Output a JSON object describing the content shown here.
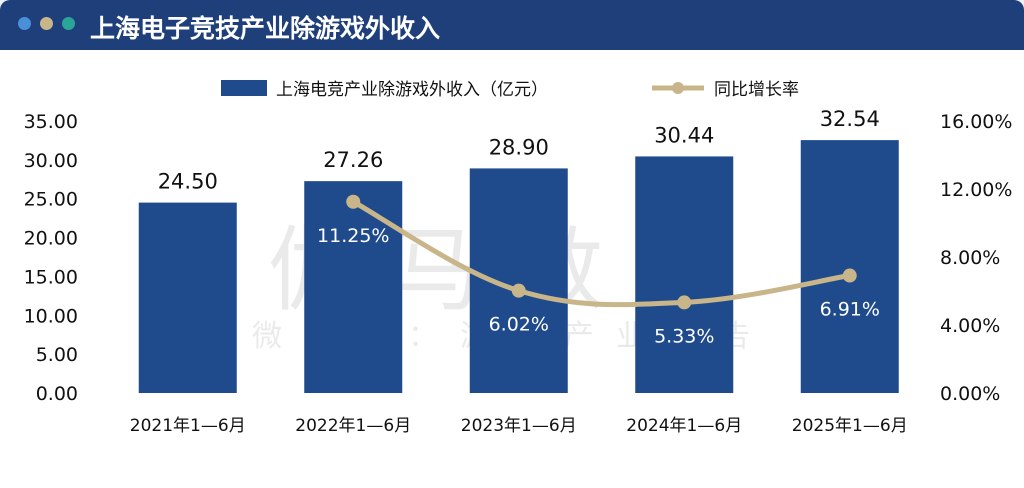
{
  "header": {
    "title": "上海电子竞技产业除游戏外收入",
    "dot_colors": [
      "#4a90d9",
      "#c8b58a",
      "#2aa59a"
    ]
  },
  "watermark": {
    "main": "伽马数据",
    "sub": "微信号：游戏产业报告"
  },
  "chart_data": {
    "type": "bar",
    "categories": [
      "2021年1—6月",
      "2022年1—6月",
      "2023年1—6月",
      "2024年1—6月",
      "2025年1—6月"
    ],
    "series": [
      {
        "name": "上海电竞产业除游戏外收入（亿元）",
        "type": "bar",
        "axis": "left",
        "color": "#1f4b8c",
        "values": [
          24.5,
          27.26,
          28.9,
          30.44,
          32.54
        ],
        "labels": [
          "24.50",
          "27.26",
          "28.90",
          "30.44",
          "32.54"
        ]
      },
      {
        "name": "同比增长率",
        "type": "line",
        "axis": "right",
        "color": "#c8b58a",
        "values": [
          null,
          11.25,
          6.02,
          5.33,
          6.91
        ],
        "labels": [
          "",
          "11.25%",
          "6.02%",
          "5.33%",
          "6.91%"
        ]
      }
    ],
    "y_left": {
      "ylim": [
        0,
        35
      ],
      "ticks": [
        "0.00",
        "5.00",
        "10.00",
        "15.00",
        "20.00",
        "25.00",
        "30.00",
        "35.00"
      ]
    },
    "y_right": {
      "ylim": [
        0,
        16
      ],
      "ticks": [
        "0.00%",
        "4.00%",
        "8.00%",
        "12.00%",
        "16.00%"
      ]
    },
    "legend_position": "top-center",
    "grid": false
  }
}
